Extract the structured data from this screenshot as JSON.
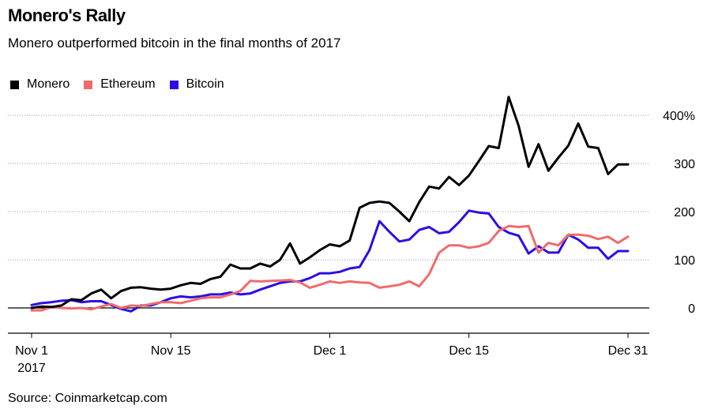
{
  "title": "Monero's Rally",
  "subtitle": "Monero outperformed bitcoin in the final months of 2017",
  "source": "Source: Coinmarketcap.com",
  "chart_data": {
    "type": "line",
    "title": "Monero's Rally",
    "subtitle": "Monero outperformed bitcoin in the final months of 2017",
    "xlabel": "",
    "ylabel": "",
    "unit": "%",
    "x": [
      "2017-11-01",
      "2017-11-02",
      "2017-11-03",
      "2017-11-04",
      "2017-11-05",
      "2017-11-06",
      "2017-11-07",
      "2017-11-08",
      "2017-11-09",
      "2017-11-10",
      "2017-11-11",
      "2017-11-12",
      "2017-11-13",
      "2017-11-14",
      "2017-11-15",
      "2017-11-16",
      "2017-11-17",
      "2017-11-18",
      "2017-11-19",
      "2017-11-20",
      "2017-11-21",
      "2017-11-22",
      "2017-11-23",
      "2017-11-24",
      "2017-11-25",
      "2017-11-26",
      "2017-11-27",
      "2017-11-28",
      "2017-11-29",
      "2017-11-30",
      "2017-12-01",
      "2017-12-02",
      "2017-12-03",
      "2017-12-04",
      "2017-12-05",
      "2017-12-06",
      "2017-12-07",
      "2017-12-08",
      "2017-12-09",
      "2017-12-10",
      "2017-12-11",
      "2017-12-12",
      "2017-12-13",
      "2017-12-14",
      "2017-12-15",
      "2017-12-16",
      "2017-12-17",
      "2017-12-18",
      "2017-12-19",
      "2017-12-20",
      "2017-12-21",
      "2017-12-22",
      "2017-12-23",
      "2017-12-24",
      "2017-12-25",
      "2017-12-26",
      "2017-12-27",
      "2017-12-28",
      "2017-12-29",
      "2017-12-30",
      "2017-12-31"
    ],
    "x_tick_labels": [
      {
        "date": "2017-11-01",
        "label": "Nov 1",
        "sublabel": "2017"
      },
      {
        "date": "2017-11-15",
        "label": "Nov 15"
      },
      {
        "date": "2017-12-01",
        "label": "Dec 1"
      },
      {
        "date": "2017-12-15",
        "label": "Dec 15"
      },
      {
        "date": "2017-12-31",
        "label": "Dec 31"
      }
    ],
    "yticks": [
      0,
      100,
      200,
      300,
      400
    ],
    "y_tick_labels": [
      "0",
      "100",
      "200",
      "300",
      "400%"
    ],
    "ylim": [
      -45,
      420
    ],
    "y_axis_position": "right",
    "grid": "horizontal-dotted",
    "legend_position": "top-left",
    "series": [
      {
        "name": "Monero",
        "color": "#000000",
        "values": [
          0,
          3,
          2,
          5,
          18,
          16,
          30,
          38,
          20,
          35,
          42,
          43,
          40,
          38,
          40,
          47,
          52,
          50,
          60,
          65,
          90,
          82,
          82,
          92,
          86,
          100,
          134,
          92,
          105,
          120,
          132,
          128,
          140,
          208,
          218,
          221,
          218,
          200,
          180,
          220,
          252,
          248,
          272,
          255,
          275,
          305,
          336,
          332,
          438,
          378,
          293,
          340,
          285,
          312,
          337,
          383,
          335,
          332,
          278,
          298,
          298
        ],
        "label_excluded_end": true
      },
      {
        "name": "Ethereum",
        "color": "#f06b6b",
        "values": [
          -5,
          -5,
          2,
          0,
          -1,
          0,
          -3,
          3,
          8,
          0,
          5,
          4,
          8,
          12,
          12,
          10,
          15,
          20,
          22,
          22,
          28,
          35,
          56,
          55,
          56,
          57,
          58,
          53,
          42,
          48,
          55,
          52,
          55,
          53,
          52,
          42,
          45,
          48,
          55,
          45,
          70,
          115,
          130,
          130,
          125,
          128,
          135,
          160,
          170,
          168,
          170,
          115,
          135,
          130,
          152,
          152,
          150,
          143,
          148,
          135,
          148
        ]
      },
      {
        "name": "Bitcoin",
        "color": "#2b0ee6",
        "values": [
          6,
          10,
          12,
          15,
          16,
          12,
          14,
          14,
          6,
          -2,
          -7,
          5,
          5,
          12,
          20,
          24,
          22,
          24,
          28,
          28,
          32,
          28,
          30,
          38,
          45,
          52,
          55,
          55,
          62,
          72,
          72,
          75,
          82,
          85,
          120,
          180,
          158,
          138,
          142,
          162,
          168,
          155,
          158,
          178,
          202,
          198,
          196,
          168,
          156,
          150,
          113,
          128,
          115,
          115,
          152,
          142,
          125,
          125,
          102,
          118,
          118
        ]
      }
    ]
  }
}
